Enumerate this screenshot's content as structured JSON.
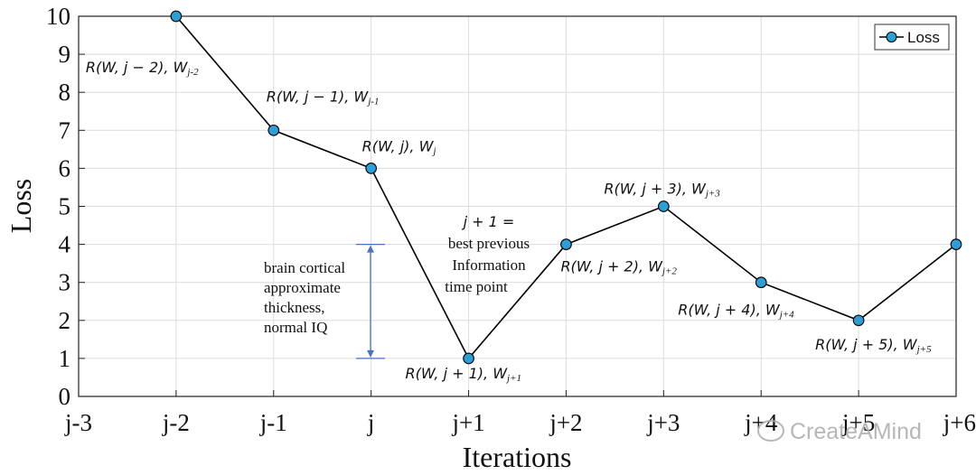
{
  "chart_data": {
    "type": "line",
    "categories": [
      "j-3",
      "j-2",
      "j-1",
      "j",
      "j+1",
      "j+2",
      "j+3",
      "j+4",
      "j+5",
      "j+6"
    ],
    "x": [
      "j-2",
      "j-1",
      "j",
      "j+1",
      "j+2",
      "j+3",
      "j+4",
      "j+5",
      "j+6"
    ],
    "series": [
      {
        "name": "Loss",
        "values": [
          10,
          7,
          6,
          1,
          4,
          5,
          3,
          2,
          4
        ]
      }
    ],
    "xlabel": "Iterations",
    "ylabel": "Loss",
    "ylim": [
      0,
      10
    ],
    "yticks": [
      "0",
      "1",
      "2",
      "3",
      "4",
      "5",
      "6",
      "7",
      "8",
      "9",
      "10"
    ],
    "grid": true,
    "legend": "top-right",
    "line_color": "#000000",
    "marker_color": "#2b9fd6",
    "annotations": {
      "point_labels": [
        {
          "main": "R(W, j − 2), W",
          "sub": "j-2"
        },
        {
          "main": "R(W, j − 1), W",
          "sub": "j-1"
        },
        {
          "main": "R(W, j), W",
          "sub": "j"
        },
        {
          "main": "R(W, j + 1), W",
          "sub": "j+1"
        },
        {
          "main": "R(W, j + 2), W",
          "sub": "j+2"
        },
        {
          "main": "R(W, j + 3), W",
          "sub": "j+3"
        },
        {
          "main": "R(W, j + 4), W",
          "sub": "j+4"
        },
        {
          "main": "R(W, j + 5), W",
          "sub": "j+5"
        }
      ],
      "best_point_note": [
        "j + 1 =",
        "best previous",
        "Information",
        "time point"
      ],
      "range_note": [
        "brain cortical",
        "approximate",
        "thickness,",
        "normal IQ"
      ],
      "range_arrow": {
        "from": 1,
        "to": 4,
        "color": "#4a72c4"
      }
    }
  },
  "watermark": "CreateAMind"
}
